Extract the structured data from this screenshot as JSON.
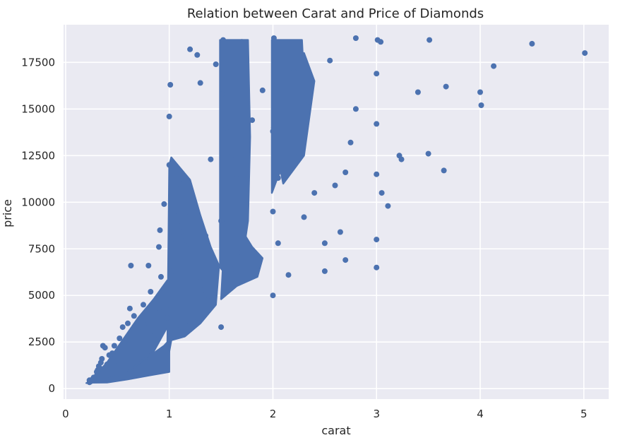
{
  "chart_data": {
    "type": "scatter",
    "title": "Relation between Carat and Price of Diamonds",
    "xlabel": "carat",
    "ylabel": "price",
    "xlim": [
      -0.02,
      5.24
    ],
    "ylim": [
      -560,
      19520
    ],
    "xticks": [
      0,
      1,
      2,
      3,
      4,
      5
    ],
    "yticks": [
      0,
      2500,
      5000,
      7500,
      10000,
      12500,
      15000,
      17500
    ],
    "grid": true,
    "legend": "none",
    "colors": {
      "background": "#EAEAF2",
      "grid": "#FFFFFF",
      "marker": "#4C72B0"
    },
    "series": [
      {
        "points": [
          [
            0.23,
            340
          ],
          [
            0.23,
            450
          ],
          [
            0.24,
            380
          ],
          [
            0.25,
            420
          ],
          [
            0.26,
            500
          ],
          [
            0.27,
            600
          ],
          [
            0.28,
            560
          ],
          [
            0.3,
            700
          ],
          [
            0.3,
            900
          ],
          [
            0.31,
            1000
          ],
          [
            0.32,
            1200
          ],
          [
            0.33,
            1100
          ],
          [
            0.34,
            1400
          ],
          [
            0.35,
            1600
          ],
          [
            0.36,
            2300
          ],
          [
            0.38,
            2200
          ],
          [
            0.4,
            1300
          ],
          [
            0.41,
            900
          ],
          [
            0.42,
            1800
          ],
          [
            0.45,
            1900
          ],
          [
            0.47,
            2300
          ],
          [
            0.5,
            2000
          ],
          [
            0.5,
            1500
          ],
          [
            0.52,
            2700
          ],
          [
            0.55,
            3300
          ],
          [
            0.57,
            2500
          ],
          [
            0.6,
            3500
          ],
          [
            0.62,
            4300
          ],
          [
            0.63,
            6600
          ],
          [
            0.66,
            3900
          ],
          [
            0.7,
            3200
          ],
          [
            0.7,
            2100
          ],
          [
            0.72,
            3700
          ],
          [
            0.75,
            4500
          ],
          [
            0.8,
            3500
          ],
          [
            0.8,
            6600
          ],
          [
            0.82,
            5200
          ],
          [
            0.85,
            2800
          ],
          [
            0.9,
            4300
          ],
          [
            0.9,
            7600
          ],
          [
            0.91,
            8500
          ],
          [
            0.92,
            6000
          ],
          [
            0.95,
            9900
          ],
          [
            0.98,
            3800
          ],
          [
            1.0,
            4500
          ],
          [
            1.0,
            12000
          ],
          [
            1.0,
            14600
          ],
          [
            1.01,
            16300
          ],
          [
            1.01,
            2700
          ],
          [
            1.02,
            8000
          ],
          [
            1.03,
            6300
          ],
          [
            1.05,
            10500
          ],
          [
            1.1,
            11000
          ],
          [
            1.2,
            9400
          ],
          [
            1.2,
            18200
          ],
          [
            1.27,
            17900
          ],
          [
            1.3,
            16400
          ],
          [
            1.3,
            6000
          ],
          [
            1.35,
            8200
          ],
          [
            1.4,
            12300
          ],
          [
            1.45,
            17400
          ],
          [
            1.5,
            3300
          ],
          [
            1.5,
            9000
          ],
          [
            1.51,
            15800
          ],
          [
            1.52,
            18700
          ],
          [
            1.55,
            14000
          ],
          [
            1.6,
            12500
          ],
          [
            1.6,
            6400
          ],
          [
            1.65,
            11500
          ],
          [
            1.7,
            18600
          ],
          [
            1.7,
            7300
          ],
          [
            1.75,
            15500
          ],
          [
            1.8,
            14400
          ],
          [
            1.9,
            16000
          ],
          [
            2.0,
            5000
          ],
          [
            2.0,
            9500
          ],
          [
            2.0,
            13800
          ],
          [
            2.01,
            18800
          ],
          [
            2.02,
            16500
          ],
          [
            2.05,
            11300
          ],
          [
            2.05,
            7800
          ],
          [
            2.1,
            14500
          ],
          [
            2.15,
            6100
          ],
          [
            2.2,
            17000
          ],
          [
            2.25,
            12500
          ],
          [
            2.3,
            9200
          ],
          [
            2.35,
            15400
          ],
          [
            2.4,
            10500
          ],
          [
            2.5,
            7800
          ],
          [
            2.5,
            6300
          ],
          [
            2.55,
            17600
          ],
          [
            2.6,
            10900
          ],
          [
            2.65,
            8400
          ],
          [
            2.7,
            11600
          ],
          [
            2.7,
            6900
          ],
          [
            2.75,
            13200
          ],
          [
            2.8,
            18800
          ],
          [
            2.8,
            15000
          ],
          [
            3.0,
            8000
          ],
          [
            3.0,
            6500
          ],
          [
            3.0,
            11500
          ],
          [
            3.0,
            14200
          ],
          [
            3.0,
            16900
          ],
          [
            3.01,
            18700
          ],
          [
            3.04,
            18600
          ],
          [
            3.05,
            10500
          ],
          [
            3.11,
            9800
          ],
          [
            3.22,
            12500
          ],
          [
            3.24,
            12300
          ],
          [
            3.4,
            15900
          ],
          [
            3.5,
            12600
          ],
          [
            3.51,
            18700
          ],
          [
            3.65,
            11700
          ],
          [
            3.67,
            16200
          ],
          [
            4.0,
            15900
          ],
          [
            4.01,
            15200
          ],
          [
            4.13,
            17300
          ],
          [
            4.5,
            18500
          ],
          [
            5.01,
            18000
          ]
        ]
      }
    ]
  }
}
